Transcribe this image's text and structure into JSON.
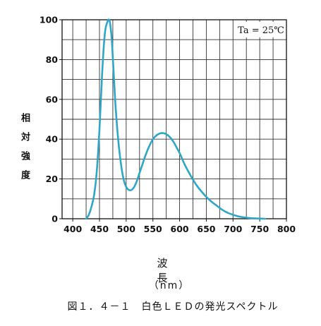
{
  "chart_data": {
    "type": "line",
    "title": "図１．４－１　白色ＬＥＤの発光スペクトル",
    "xlabel": "波　長",
    "xunit": "（nm）",
    "ylabel": "相対強度",
    "annotation": "Ta = 25℃",
    "xlim": [
      380,
      800
    ],
    "ylim": [
      0,
      100
    ],
    "xticks": [
      400,
      450,
      500,
      550,
      600,
      650,
      700,
      750,
      800
    ],
    "yticks": [
      0,
      20,
      40,
      60,
      80,
      100
    ],
    "grid": true,
    "line_color": "#2ea6c6",
    "series": [
      {
        "x": [
          425,
          430,
          435,
          440,
          445,
          450,
          455,
          460,
          465,
          468,
          470,
          473,
          476,
          480,
          485,
          490,
          495,
          500,
          505,
          510,
          515,
          520,
          525,
          530,
          535,
          540,
          545,
          550,
          555,
          560,
          565,
          570,
          575,
          580,
          585,
          590,
          595,
          600,
          610,
          620,
          630,
          640,
          650,
          660,
          670,
          680,
          690,
          700,
          710,
          720,
          730,
          740,
          750,
          760
        ],
        "y": [
          0,
          2,
          6,
          12,
          24,
          45,
          73,
          93,
          99,
          100,
          98,
          90,
          76,
          57,
          40,
          28,
          20,
          16,
          14.5,
          14.5,
          16,
          19,
          23,
          27,
          31,
          34.5,
          37.5,
          40,
          41.5,
          42.5,
          43,
          43,
          42.5,
          41.5,
          40,
          38,
          35.5,
          33,
          27,
          22,
          17.5,
          14,
          11,
          8.5,
          6.5,
          4.5,
          3,
          2,
          1.2,
          0.7,
          0.4,
          0.2,
          0.1,
          0
        ]
      }
    ]
  }
}
